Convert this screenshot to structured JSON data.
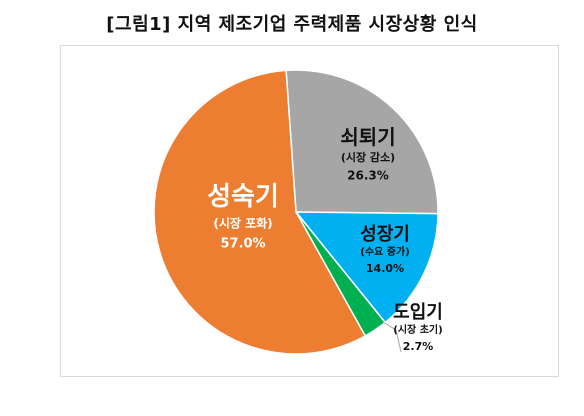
{
  "title": "[그림1] 지역 제조기업 주력제품 시장상황 인식",
  "chart_data": {
    "type": "pie",
    "title": "[그림1] 지역 제조기업 주력제품 시장상황 인식",
    "slices": [
      {
        "label": "쇠퇴기",
        "sub": "(시장 감소)",
        "value": 26.3,
        "value_text": "26.3%",
        "color": "#a6a6a6"
      },
      {
        "label": "성장기",
        "sub": "(수요 증가)",
        "value": 14.0,
        "value_text": "14.0%",
        "color": "#00b0f0"
      },
      {
        "label": "도입기",
        "sub": "(시장 초기)",
        "value": 2.7,
        "value_text": "2.7%",
        "color": "#00b050"
      },
      {
        "label": "성숙기",
        "sub": "(시장 포화)",
        "value": 57.0,
        "value_text": "57.0%",
        "color": "#ed7d31"
      }
    ]
  }
}
